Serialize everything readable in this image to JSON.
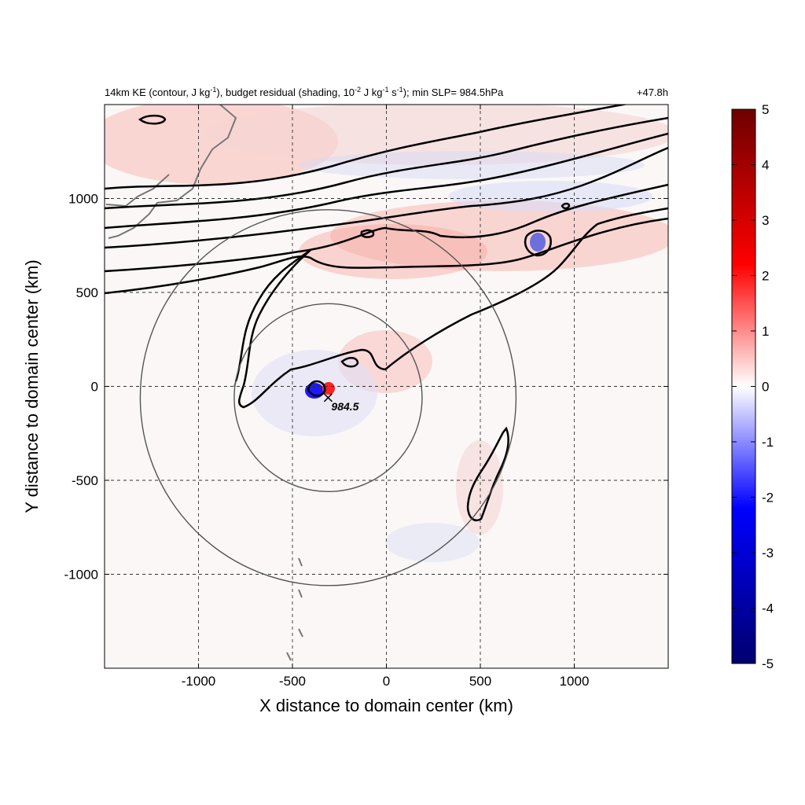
{
  "chart_data": {
    "type": "heatmap",
    "title_html": "14km KE (contour, J kg<tspan baseline-shift='super' font-size='9'>-1</tspan>), budget residual (shading, 10<tspan baseline-shift='super' font-size='9'>-2</tspan> J kg<tspan baseline-shift='super' font-size='9'>-1</tspan> s<tspan baseline-shift='super' font-size='9'>-1</tspan>); min SLP= 984.5hPa",
    "title_right": "+47.8h",
    "xlabel": "X distance to domain center (km)",
    "ylabel": "Y distance to domain center (km)",
    "xlim": [
      -1500,
      1500
    ],
    "ylim": [
      -1500,
      1500
    ],
    "xticks": [
      -1000,
      -500,
      0,
      500,
      1000
    ],
    "yticks": [
      -1000,
      -500,
      0,
      500,
      1000
    ],
    "grid": "dashed",
    "colorbar": {
      "min": -5,
      "max": 5,
      "ticks": [
        5,
        4,
        3,
        2,
        1,
        0,
        -1,
        -2,
        -3,
        -4,
        -5
      ],
      "colors": [
        "#00006e",
        "#0000ff",
        "#ffffff",
        "#ff0000",
        "#6e0000"
      ]
    },
    "storm_center": {
      "x": -310,
      "y": -60,
      "label": "984.5"
    },
    "range_circles": [
      {
        "center_x": -310,
        "center_y": -60,
        "radius_km": 500
      },
      {
        "center_x": -310,
        "center_y": -60,
        "radius_km": 1000
      }
    ]
  }
}
